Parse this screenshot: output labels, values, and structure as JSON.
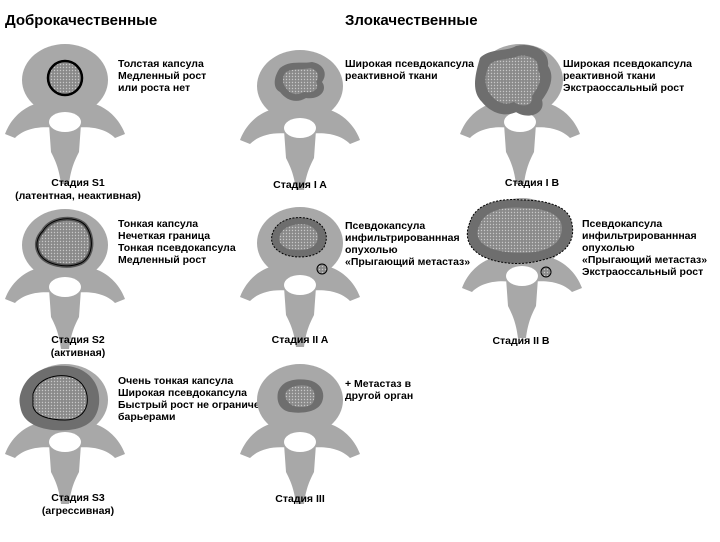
{
  "headers": {
    "benign": "Доброкачественные",
    "malignant": "Злокачественные"
  },
  "colors": {
    "bone": "#a8a8a8",
    "tumor": "#6e6e6e",
    "capsule": "#555555",
    "outline": "#000000",
    "hole": "#ffffff"
  },
  "stages": {
    "s1": {
      "caption": [
        "Стадия S1",
        "(латентная, неактивная)"
      ],
      "desc": [
        "Толстая капсула",
        "Медленный рост",
        "или роста нет"
      ]
    },
    "s2": {
      "caption": [
        "Стадия S2",
        "(активная)"
      ],
      "desc": [
        "Тонкая капсула",
        "Нечеткая граница",
        "Тонкая псевдокапсула",
        "Медленный рост"
      ]
    },
    "s3": {
      "caption": [
        "Стадия S3",
        "(агрессивная)"
      ],
      "desc": [
        "Очень тонкая капсула",
        "Широкая псевдокапсула",
        "Быстрый рост не ограничен",
        "барьерами"
      ]
    },
    "ia": {
      "caption": [
        "Стадия I A"
      ],
      "desc": [
        "Широкая псевдокапсула",
        "реактивной ткани"
      ]
    },
    "iia": {
      "caption": [
        "Стадия II A"
      ],
      "desc": [
        "Псевдокапсула",
        "инфильтрированнная",
        "опухолью",
        "«Прыгающий метастаз»"
      ]
    },
    "iii": {
      "caption": [
        "Стадия III"
      ],
      "desc": [
        "+ Метастаз в",
        "другой орган"
      ]
    },
    "ib": {
      "caption": [
        "Стадия I B"
      ],
      "desc": [
        "Широкая псевдокапсула",
        "реактивной ткани",
        "Экстраоссальный рост"
      ]
    },
    "iib": {
      "caption": [
        "Стадия II B"
      ],
      "desc": [
        "Псевдокапсула",
        "инфильтрированнная",
        "опухолью",
        "«Прыгающий метастаз»",
        "Экстраоссальный рост"
      ]
    }
  }
}
